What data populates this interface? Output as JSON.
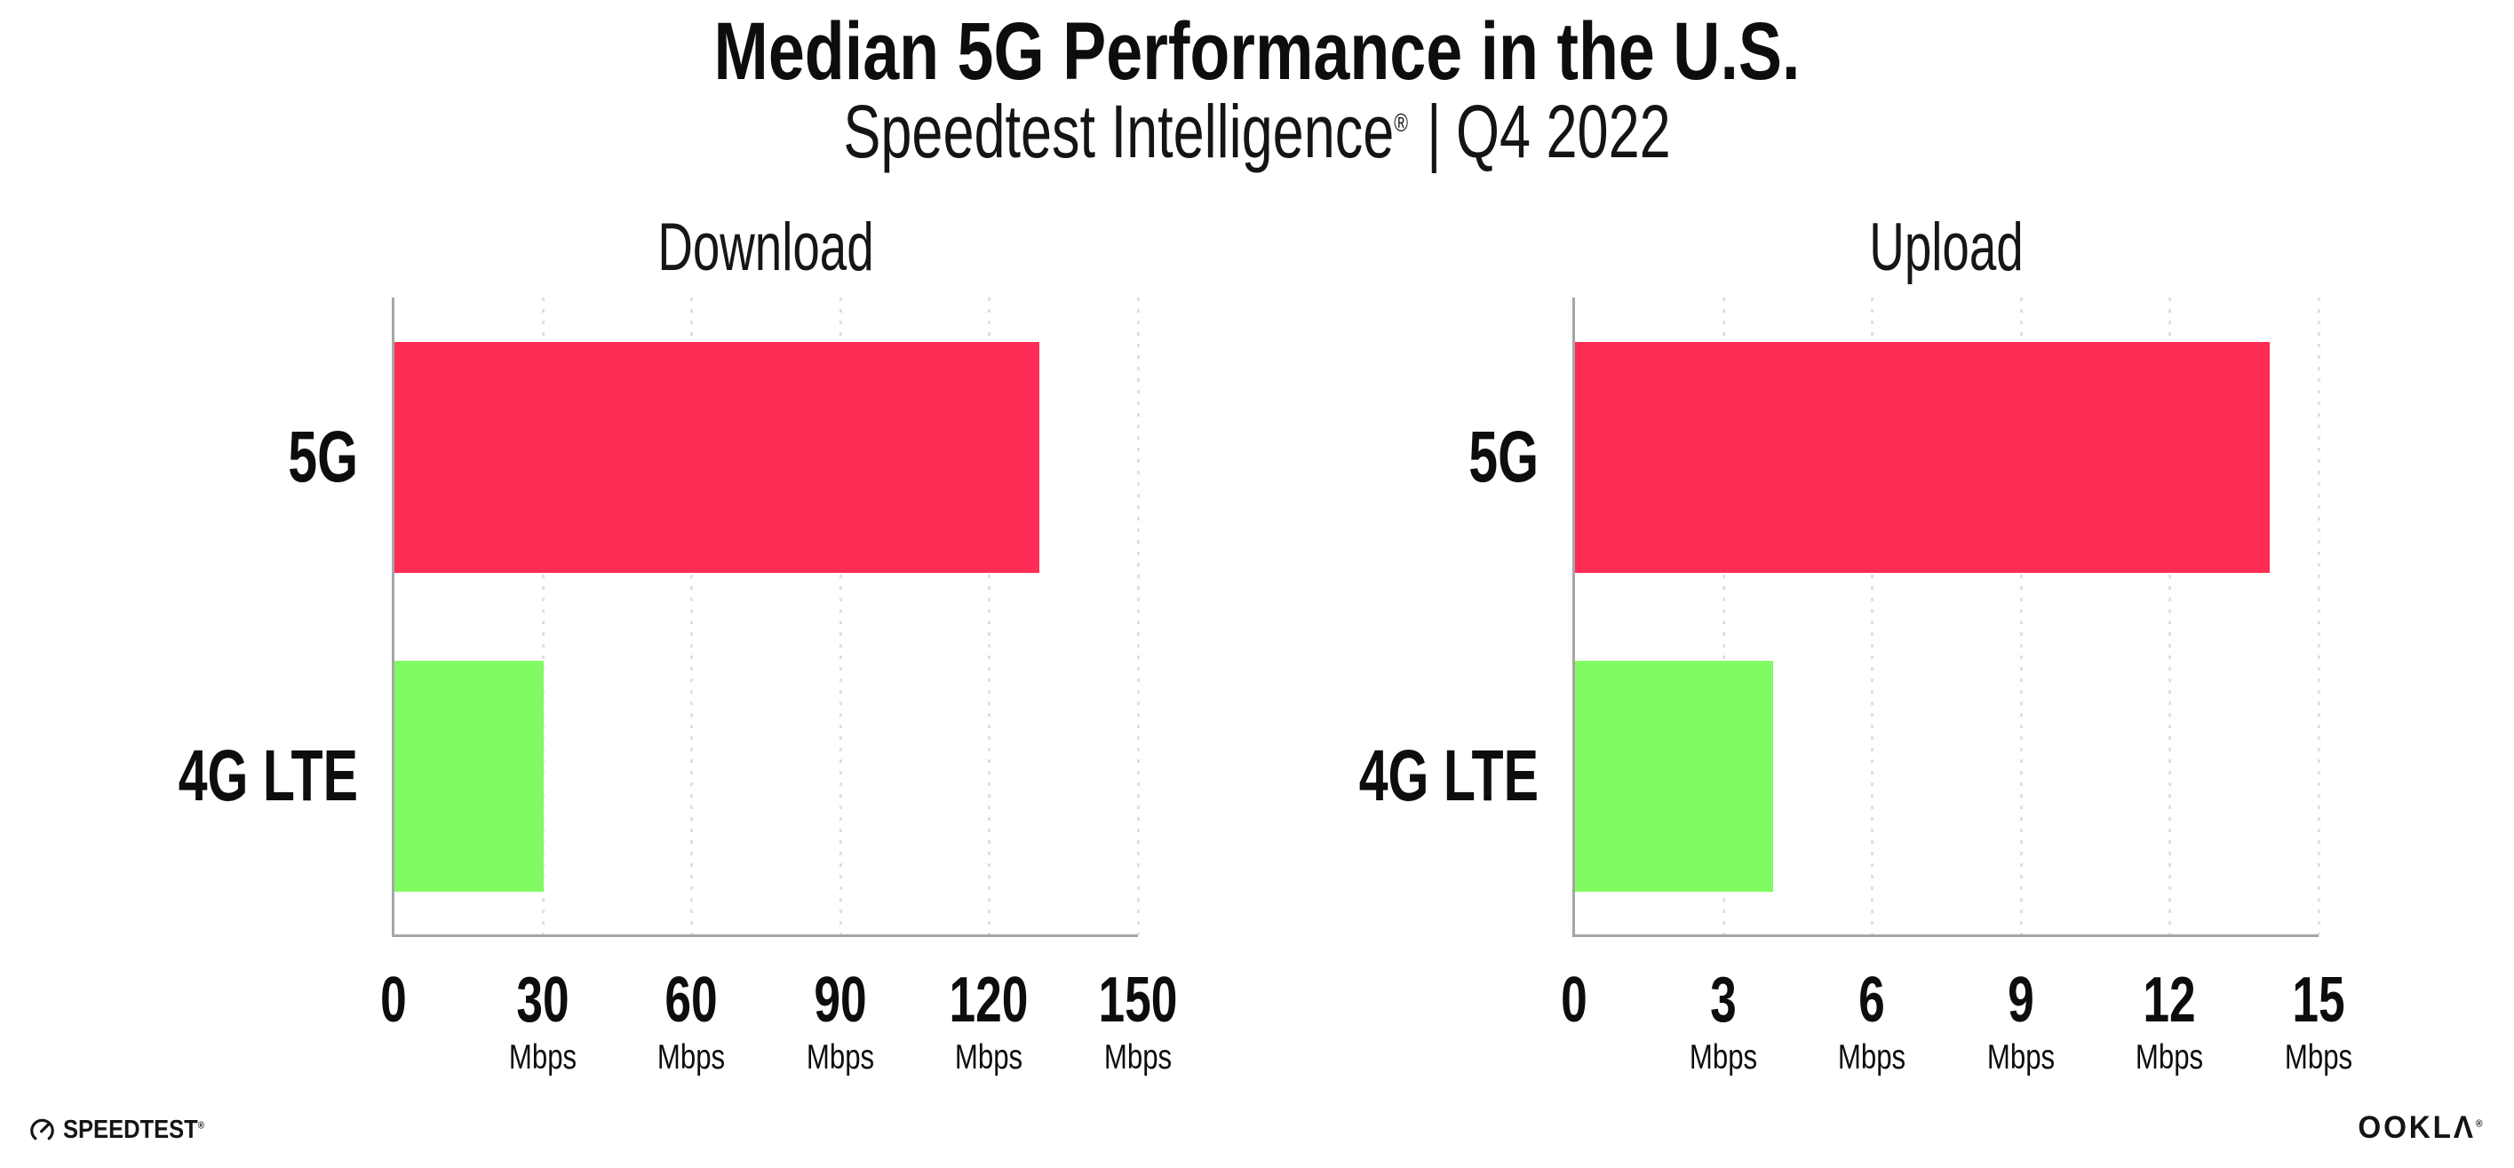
{
  "header": {
    "title": "Median 5G Performance in the U.S.",
    "subtitle_brand": "Speedtest Intelligence",
    "subtitle_reg": "®",
    "subtitle_divider": "|",
    "subtitle_period": "Q4 2022"
  },
  "footer": {
    "speedtest_logo_text": "SPEEDTEST",
    "speedtest_reg": "®",
    "ookla_logo_text": "OOKLΛ",
    "ookla_reg": "®"
  },
  "colors": {
    "bar_5g": "#FF2D55",
    "bar_4g_lte": "#80FB62",
    "axis_spine": "#a6a6a6",
    "gridline": "#dfdfe6",
    "text": "#0d0d0d"
  },
  "chart_data": [
    {
      "type": "bar",
      "orientation": "horizontal",
      "title": "Download",
      "categories": [
        "5G",
        "4G LTE"
      ],
      "values": [
        130,
        30
      ],
      "unit": "Mbps",
      "xlabel": "",
      "ylabel": "",
      "xlim": [
        0,
        150
      ],
      "xticks": [
        0,
        30,
        60,
        90,
        120,
        150
      ],
      "bar_colors": [
        "#FF2D55",
        "#80FB62"
      ],
      "grid": "vertical-dotted",
      "legend": "none"
    },
    {
      "type": "bar",
      "orientation": "horizontal",
      "title": "Upload",
      "categories": [
        "5G",
        "4G LTE"
      ],
      "values": [
        14,
        4
      ],
      "unit": "Mbps",
      "xlabel": "",
      "ylabel": "",
      "xlim": [
        0,
        15
      ],
      "xticks": [
        0,
        3,
        6,
        9,
        12,
        15
      ],
      "bar_colors": [
        "#FF2D55",
        "#80FB62"
      ],
      "grid": "vertical-dotted",
      "legend": "none"
    }
  ]
}
